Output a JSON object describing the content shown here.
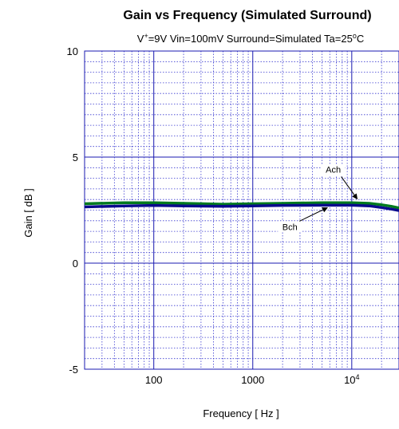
{
  "chart_data": {
    "type": "line",
    "title": "Gain vs Frequency (Simulated Surround)",
    "subtitle": {
      "prefix": "V",
      "prefix_sup": "+",
      "main": "=9V Vin=100mV Surround=Simulated Ta=25",
      "degree": "o",
      "suffix": "C"
    },
    "xlabel": "Frequency [ Hz ]",
    "ylabel": "Gain [ dB ]",
    "x_scale": "log",
    "xlim": [
      20,
      30000
    ],
    "ylim": [
      -5,
      10
    ],
    "y_ticks": [
      {
        "value": 10,
        "label": "10"
      },
      {
        "value": 5,
        "label": "5"
      },
      {
        "value": 0,
        "label": "0"
      },
      {
        "value": -5,
        "label": "-5"
      }
    ],
    "x_ticks": [
      {
        "value": 100,
        "label": "100",
        "sup": ""
      },
      {
        "value": 1000,
        "label": "1000",
        "sup": ""
      },
      {
        "value": 10000,
        "label": "10",
        "sup": "4"
      }
    ],
    "grid": true,
    "series": [
      {
        "name": "Ach",
        "color": "#007a1e",
        "x": [
          20,
          50,
          100,
          200,
          500,
          1000,
          2000,
          5000,
          10000,
          15000,
          20000,
          25000,
          30000
        ],
        "y": [
          2.8,
          2.85,
          2.85,
          2.82,
          2.78,
          2.8,
          2.82,
          2.85,
          2.85,
          2.82,
          2.75,
          2.68,
          2.6
        ]
      },
      {
        "name": "Bch",
        "color": "#0a0a8c",
        "x": [
          20,
          50,
          100,
          200,
          500,
          1000,
          2000,
          5000,
          10000,
          15000,
          20000,
          25000,
          30000
        ],
        "y": [
          2.65,
          2.7,
          2.72,
          2.7,
          2.68,
          2.7,
          2.72,
          2.73,
          2.73,
          2.7,
          2.62,
          2.55,
          2.48
        ]
      }
    ],
    "annotations": [
      {
        "text": "Ach",
        "target_series": "Ach",
        "target_x": 12000
      },
      {
        "text": "Bch",
        "target_series": "Bch",
        "target_x": 6000
      }
    ]
  }
}
